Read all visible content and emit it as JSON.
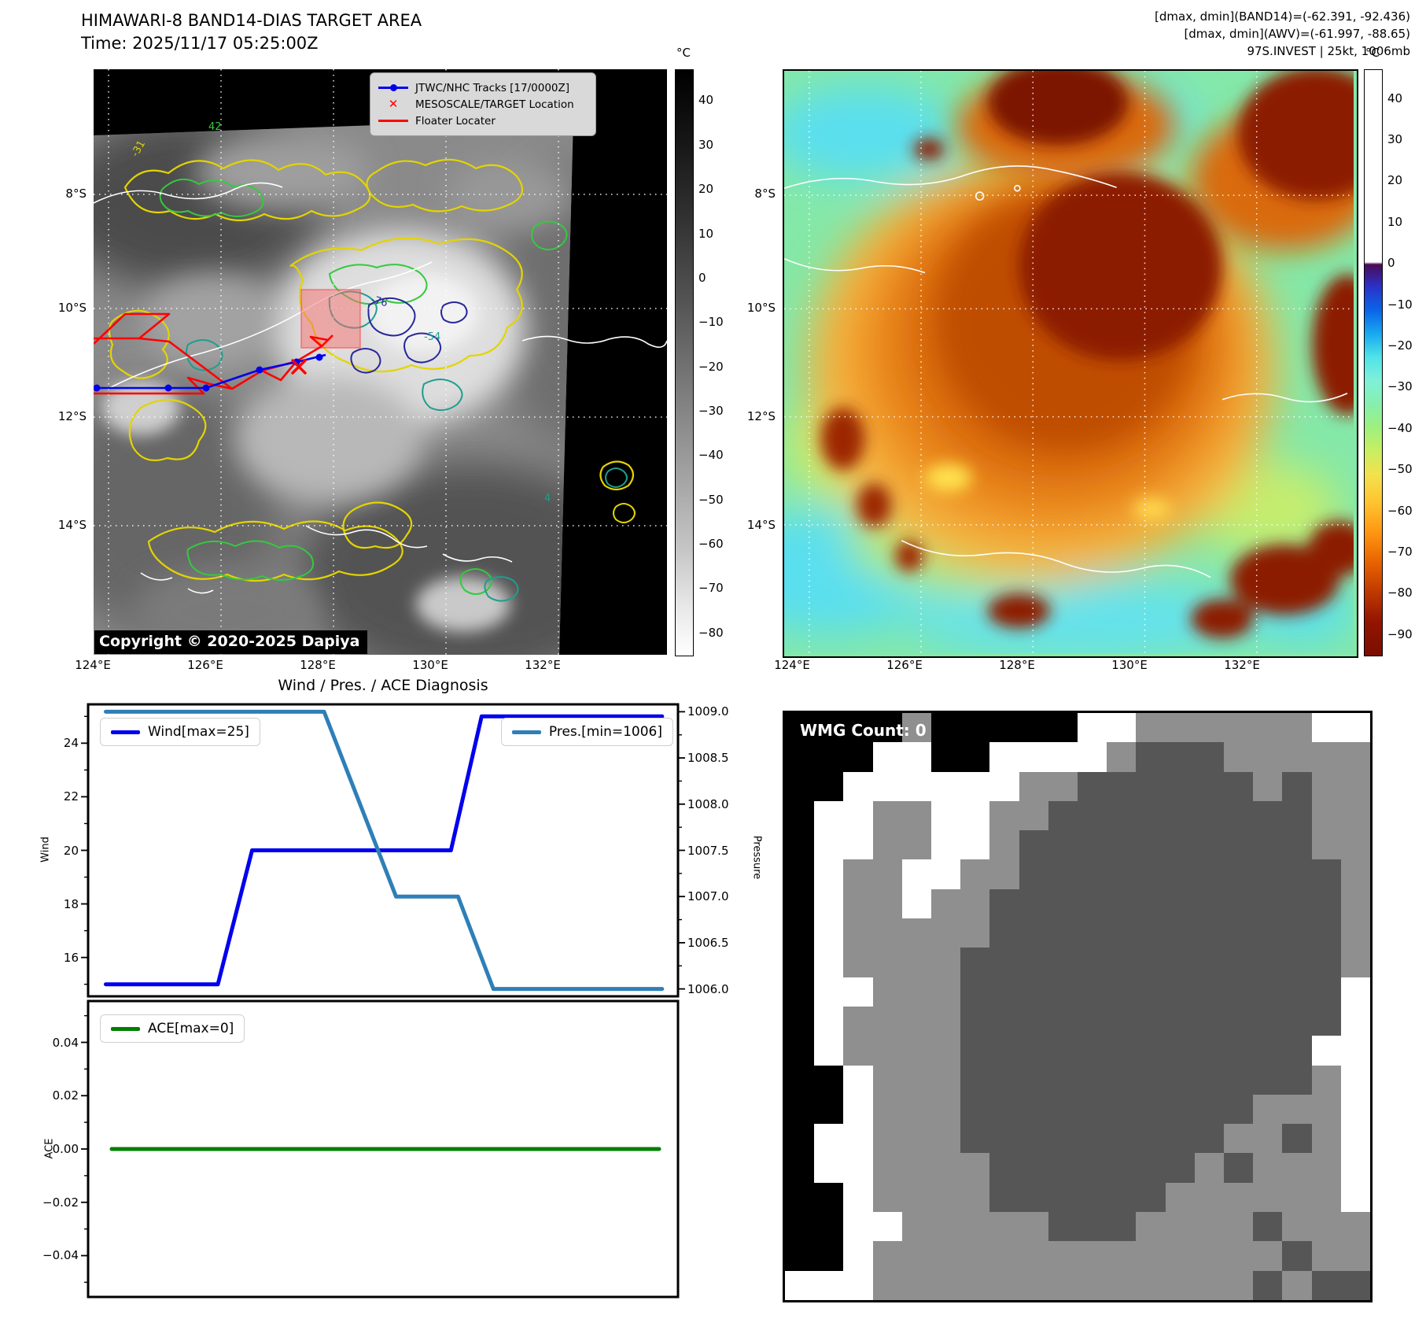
{
  "band14": {
    "title": "HIMAWARI-8 BAND14-DIAS TARGET AREA",
    "time_line": "Time: 2025/11/17 05:25:00Z",
    "legend": {
      "track_label": "JTWC/NHC Tracks [17/0000Z]",
      "target_label": "MESOSCALE/TARGET Location",
      "floater_label": "Floater Locater"
    },
    "copyright": "Copyright © 2020-2025 Dapiya",
    "lat_ticks": [
      "8°S",
      "10°S",
      "12°S",
      "14°S"
    ],
    "lon_ticks": [
      "124°E",
      "126°E",
      "128°E",
      "130°E",
      "132°E"
    ],
    "colorbar": {
      "unit": "°C",
      "ticks": [
        {
          "v": 40,
          "label": "40"
        },
        {
          "v": 30,
          "label": "30"
        },
        {
          "v": 20,
          "label": "20"
        },
        {
          "v": 10,
          "label": "10"
        },
        {
          "v": 0,
          "label": "0"
        },
        {
          "v": -10,
          "label": "−10"
        },
        {
          "v": -20,
          "label": "−20"
        },
        {
          "v": -30,
          "label": "−30"
        },
        {
          "v": -40,
          "label": "−40"
        },
        {
          "v": -50,
          "label": "−50"
        },
        {
          "v": -60,
          "label": "−60"
        },
        {
          "v": -70,
          "label": "−70"
        },
        {
          "v": -80,
          "label": "−80"
        }
      ]
    },
    "contour_labels": [
      "42",
      "-31",
      "-54",
      "-76",
      "4"
    ],
    "track_color": "#0000ee",
    "marker_color": "#ff0000"
  },
  "awv": {
    "header_line1": "[dmax, dmin](BAND14)=(-62.391, -92.436)",
    "header_line2": "[dmax, dmin](AWV)=(-61.997, -88.65)",
    "header_line3": "97S.INVEST | 25kt, 1006mb",
    "lat_ticks": [
      "8°S",
      "10°S",
      "12°S",
      "14°S"
    ],
    "lon_ticks": [
      "124°E",
      "126°E",
      "128°E",
      "130°E",
      "132°E"
    ],
    "colorbar": {
      "unit": "°C",
      "ticks": [
        {
          "v": 40,
          "label": "40"
        },
        {
          "v": 30,
          "label": "30"
        },
        {
          "v": 20,
          "label": "20"
        },
        {
          "v": 10,
          "label": "10"
        },
        {
          "v": 0,
          "label": "0"
        },
        {
          "v": -10,
          "label": "−10"
        },
        {
          "v": -20,
          "label": "−20"
        },
        {
          "v": -30,
          "label": "−30"
        },
        {
          "v": -40,
          "label": "−40"
        },
        {
          "v": -50,
          "label": "−50"
        },
        {
          "v": -60,
          "label": "−60"
        },
        {
          "v": -70,
          "label": "−70"
        },
        {
          "v": -80,
          "label": "−80"
        },
        {
          "v": -90,
          "label": "−90"
        }
      ]
    }
  },
  "chart_data": [
    {
      "type": "line",
      "title": "Wind / Pres. / ACE Diagnosis",
      "ylabel": "Wind",
      "y2label": "Pressure",
      "x_range": [
        0,
        1
      ],
      "grid": false,
      "legend_position": "upper left / upper right",
      "series": [
        {
          "name": "Wind[max=25]",
          "color": "#0000ee",
          "yaxis": "left",
          "ylim": [
            14.55,
            25.45
          ],
          "yticks": [
            {
              "v": 24,
              "label": "24"
            },
            {
              "v": 22,
              "label": "22"
            },
            {
              "v": 20,
              "label": "20"
            },
            {
              "v": 18,
              "label": "18"
            },
            {
              "v": 16,
              "label": "16"
            }
          ],
          "minor_ticks": [
            15,
            17,
            19,
            21,
            23,
            25
          ],
          "points": [
            [
              0.03,
              15
            ],
            [
              0.22,
              15
            ],
            [
              0.278,
              20
            ],
            [
              0.615,
              20
            ],
            [
              0.667,
              25
            ],
            [
              0.973,
              25
            ]
          ]
        },
        {
          "name": "Pres.[min=1006]",
          "color": "#2e7fb8",
          "yaxis": "right",
          "ylim": [
            1005.92,
            1009.08
          ],
          "yticks": [
            {
              "v": 1009.0,
              "label": "1009.0"
            },
            {
              "v": 1008.5,
              "label": "1008.5"
            },
            {
              "v": 1008.0,
              "label": "1008.0"
            },
            {
              "v": 1007.5,
              "label": "1007.5"
            },
            {
              "v": 1007.0,
              "label": "1007.0"
            },
            {
              "v": 1006.5,
              "label": "1006.5"
            },
            {
              "v": 1006.0,
              "label": "1006.0"
            }
          ],
          "minor_ticks": [
            1006.25,
            1006.75,
            1007.25,
            1007.75,
            1008.25,
            1008.75
          ],
          "points": [
            [
              0.03,
              1009
            ],
            [
              0.4,
              1009
            ],
            [
              0.522,
              1007
            ],
            [
              0.627,
              1007
            ],
            [
              0.687,
              1006
            ],
            [
              0.973,
              1006
            ]
          ]
        }
      ]
    },
    {
      "type": "line",
      "ylabel": "ACE",
      "series": [
        {
          "name": "ACE[max=0]",
          "color": "#007f00",
          "yaxis": "left",
          "ylim": [
            -0.0555,
            0.0555
          ],
          "yticks": [
            {
              "v": 0.04,
              "label": "0.04"
            },
            {
              "v": 0.02,
              "label": "0.02"
            },
            {
              "v": 0,
              "label": "0.00"
            },
            {
              "v": -0.02,
              "label": "−0.02"
            },
            {
              "v": -0.04,
              "label": "−0.04"
            }
          ],
          "minor_ticks": [
            -0.05,
            -0.03,
            -0.01,
            0.01,
            0.03,
            0.05
          ],
          "points": [
            [
              0.04,
              0
            ],
            [
              0.968,
              0
            ]
          ]
        }
      ]
    }
  ],
  "wmg": {
    "count_label": "WMG Count: 0",
    "palette": {
      "k": "#000000",
      "w": "#ffffff",
      "l": "#8f8f8f",
      "d": "#565656"
    },
    "grid": [
      "kkkklkkkkkwwllllllww",
      "kkkwwkkwwwwldddlllll",
      "kkwwwwwwllddddddldll",
      "kwwllwwlldddddddddll",
      "kwwllwwlddddddddddll",
      "kwllwwlldddddddddddl",
      "kwllwllddddddddddddl",
      "kwlllllddddddddddddl",
      "kwlllldddddddddddddl",
      "kwwllldddddddddddddw",
      "kwlllldddddddddddddw",
      "kwllllddddddddddddww",
      "kkwlllddddddddddddlw",
      "kkwlllddddddddddlllw",
      "kwwllldddddddddlldlw",
      "kwwlllldddddddldlllw",
      "kkwllllddddddllllllw",
      "kkwwllllldddlllldlll",
      "kkwlllllllllllllldll",
      "wwwllllllllllllldldd"
    ]
  }
}
